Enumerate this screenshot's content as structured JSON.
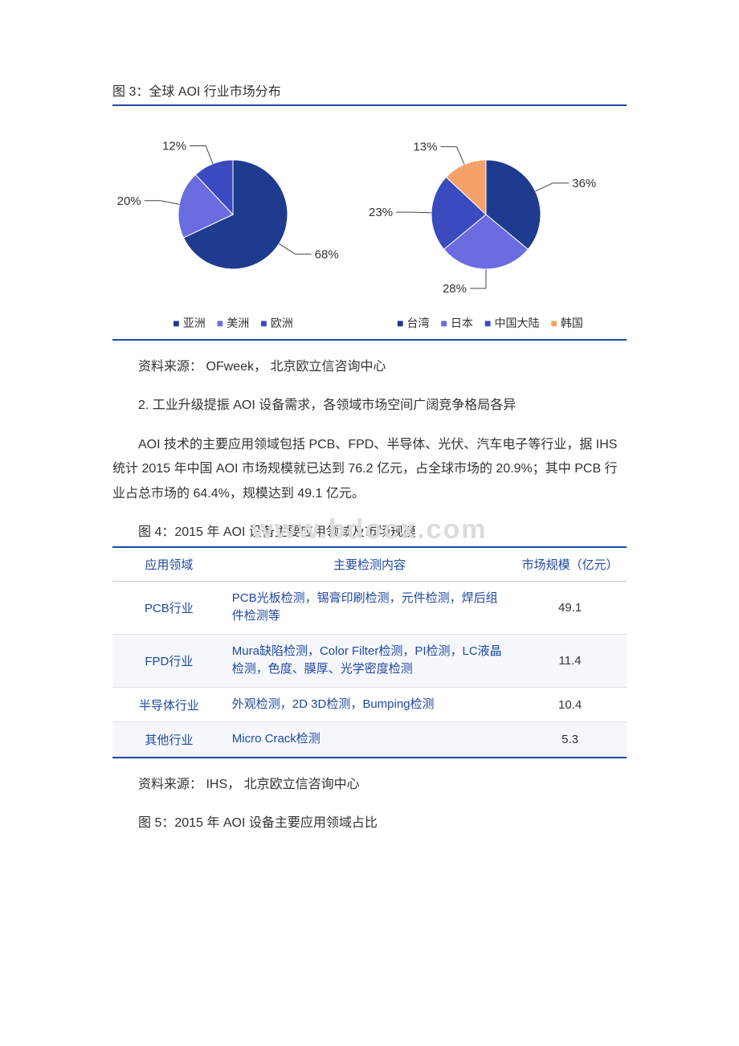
{
  "figure3": {
    "title": "图 3：全球 AOI 行业市场分布",
    "pie_left": {
      "type": "pie",
      "slices": [
        {
          "label": "亚洲",
          "value": 68,
          "color": "#1f3b8f",
          "pct_label": "68%"
        },
        {
          "label": "美洲",
          "value": 20,
          "color": "#6a6de0",
          "pct_label": "20%"
        },
        {
          "label": "欧洲",
          "value": 12,
          "color": "#3a4bc0",
          "pct_label": "12%"
        }
      ]
    },
    "pie_right": {
      "type": "pie",
      "slices": [
        {
          "label": "台湾",
          "value": 36,
          "color": "#1f3b8f",
          "pct_label": "36%"
        },
        {
          "label": "日本",
          "value": 28,
          "color": "#6a6de0",
          "pct_label": "28%"
        },
        {
          "label": "中国大陆",
          "value": 23,
          "color": "#3a4bc0",
          "pct_label": "23%"
        },
        {
          "label": "韩国",
          "value": 13,
          "color": "#f4a26a",
          "pct_label": "13%"
        }
      ]
    },
    "legend_marker": "■",
    "source": "资料来源： OFweek， 北京欧立信咨询中心"
  },
  "section2": {
    "heading": "2. 工业升级提振 AOI 设备需求，各领域市场空间广阔竞争格局各异",
    "body": "AOI 技术的主要应用领域包括 PCB、FPD、半导体、光伏、汽车电子等行业，据 IHS 统计 2015 年中国 AOI 市场规模就已达到 76.2 亿元，占全球市场的 20.9%；其中 PCB 行业占总市场的 64.4%，规模达到 49.1 亿元。"
  },
  "figure4": {
    "title": "图 4：2015 年 AOI 设备主要应用领域及市场规模",
    "columns": [
      "应用领域",
      "主要检测内容",
      "市场规模（亿元）"
    ],
    "rows": [
      {
        "domain": "PCB行业",
        "detect": "PCB光板检测，锡膏印刷检测，元件检测，焊后组件检测等",
        "size": "49.1"
      },
      {
        "domain": "FPD行业",
        "detect": "Mura缺陷检测，Color Filter检测，PI检测，LC液晶检测，色度、膜厚、光学密度检测",
        "size": "11.4"
      },
      {
        "domain": "半导体行业",
        "detect": "外观检测，2D 3D检测，Bumping检测",
        "size": "10.4"
      },
      {
        "domain": "其他行业",
        "detect": "Micro Crack检测",
        "size": "5.3"
      }
    ],
    "source": "资料来源： IHS， 北京欧立信咨询中心"
  },
  "figure5": {
    "title": "图 5：2015 年 AOI 设备主要应用领域占比"
  },
  "watermark": "www.bdocx.com"
}
